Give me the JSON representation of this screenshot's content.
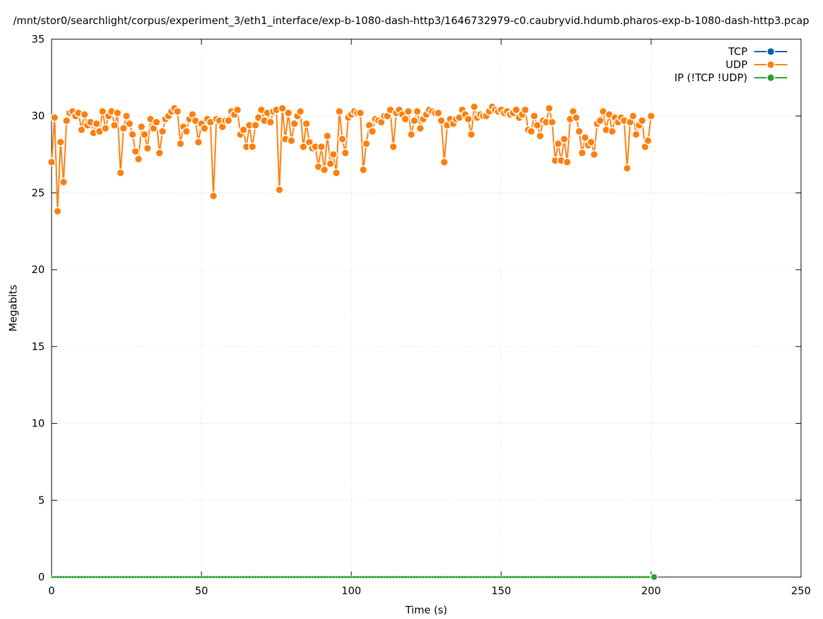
{
  "chart_data": {
    "type": "line",
    "title": "/mnt/stor0/searchlight/corpus/experiment_3/eth1_interface/exp-b-1080-dash-http3/1646732979-c0.caubryvid.hdumb.pharos-exp-b-1080-dash-http3.pcap",
    "xlabel": "Time (s)",
    "ylabel": "Megabits",
    "xlim": [
      0,
      250
    ],
    "ylim": [
      0,
      35
    ],
    "xticks": [
      0,
      50,
      100,
      150,
      200,
      250
    ],
    "yticks": [
      0,
      5,
      10,
      15,
      20,
      25,
      30,
      35
    ],
    "grid": true,
    "legend_position": "top-right",
    "series": [
      {
        "name": "TCP",
        "color": "#0060ad",
        "x": [],
        "y": []
      },
      {
        "name": "UDP",
        "color": "#ff7f0e",
        "x": [
          0,
          1,
          2,
          3,
          4,
          5,
          6,
          7,
          8,
          9,
          10,
          11,
          12,
          13,
          14,
          15,
          16,
          17,
          18,
          19,
          20,
          21,
          22,
          23,
          24,
          25,
          26,
          27,
          28,
          29,
          30,
          31,
          32,
          33,
          34,
          35,
          36,
          37,
          38,
          39,
          40,
          41,
          42,
          43,
          44,
          45,
          46,
          47,
          48,
          49,
          50,
          51,
          52,
          53,
          54,
          55,
          56,
          57,
          58,
          59,
          60,
          61,
          62,
          63,
          64,
          65,
          66,
          67,
          68,
          69,
          70,
          71,
          72,
          73,
          74,
          75,
          76,
          77,
          78,
          79,
          80,
          81,
          82,
          83,
          84,
          85,
          86,
          87,
          88,
          89,
          90,
          91,
          92,
          93,
          94,
          95,
          96,
          97,
          98,
          99,
          100,
          101,
          102,
          103,
          104,
          105,
          106,
          107,
          108,
          109,
          110,
          111,
          112,
          113,
          114,
          115,
          116,
          117,
          118,
          119,
          120,
          121,
          122,
          123,
          124,
          125,
          126,
          127,
          128,
          129,
          130,
          131,
          132,
          133,
          134,
          135,
          136,
          137,
          138,
          139,
          140,
          141,
          142,
          143,
          144,
          145,
          146,
          147,
          148,
          149,
          150,
          151,
          152,
          153,
          154,
          155,
          156,
          157,
          158,
          159,
          160,
          161,
          162,
          163,
          164,
          165,
          166,
          167,
          168,
          169,
          170,
          171,
          172,
          173,
          174,
          175,
          176,
          177,
          178,
          179,
          180,
          181,
          182,
          183,
          184,
          185,
          186,
          187,
          188,
          189,
          190,
          191,
          192,
          193,
          194,
          195,
          196,
          197,
          198,
          199,
          200
        ],
        "y": [
          27.0,
          29.9,
          23.8,
          28.3,
          25.7,
          29.7,
          30.2,
          30.3,
          30.0,
          30.2,
          29.1,
          30.1,
          29.4,
          29.6,
          28.9,
          29.5,
          29.0,
          30.3,
          29.2,
          30.0,
          30.3,
          29.4,
          30.2,
          26.3,
          29.2,
          30.0,
          29.5,
          28.8,
          27.7,
          27.2,
          29.3,
          28.8,
          27.9,
          29.8,
          29.2,
          29.6,
          27.6,
          29.0,
          29.8,
          30.0,
          30.3,
          30.5,
          30.3,
          28.2,
          29.3,
          29.0,
          29.8,
          30.1,
          29.7,
          28.3,
          29.5,
          29.2,
          29.8,
          29.6,
          24.8,
          29.8,
          29.7,
          29.3,
          29.7,
          29.7,
          30.3,
          30.1,
          30.4,
          28.8,
          29.1,
          28.0,
          29.4,
          28.0,
          29.4,
          29.9,
          30.4,
          29.7,
          30.2,
          29.6,
          30.3,
          30.4,
          25.2,
          30.5,
          28.5,
          30.2,
          28.4,
          29.5,
          30.0,
          30.3,
          28.0,
          29.5,
          28.3,
          27.9,
          28.0,
          26.7,
          28.0,
          26.5,
          28.7,
          26.9,
          27.5,
          26.3,
          30.3,
          28.5,
          27.6,
          29.9,
          30.1,
          30.3,
          30.2,
          30.2,
          26.5,
          28.2,
          29.4,
          29.0,
          29.8,
          29.7,
          29.6,
          30.0,
          30.0,
          30.4,
          28.0,
          30.2,
          30.4,
          30.1,
          29.8,
          30.3,
          28.8,
          29.7,
          30.3,
          29.2,
          29.8,
          30.1,
          30.4,
          30.3,
          30.2,
          30.2,
          29.7,
          27.0,
          29.4,
          29.8,
          29.5,
          29.8,
          29.9,
          30.4,
          30.1,
          29.8,
          28.8,
          30.6,
          29.9,
          30.1,
          30.0,
          30.0,
          30.3,
          30.6,
          30.4,
          30.3,
          30.4,
          30.2,
          30.3,
          30.1,
          30.2,
          30.4,
          29.9,
          30.1,
          30.4,
          29.1,
          29.0,
          30.0,
          29.4,
          28.7,
          29.7,
          29.6,
          30.5,
          29.6,
          27.1,
          28.2,
          27.1,
          28.5,
          27.0,
          29.8,
          30.3,
          29.9,
          29.0,
          27.6,
          28.6,
          28.1,
          28.3,
          27.5,
          29.5,
          29.7,
          30.3,
          29.1,
          30.1,
          29.0,
          29.9,
          29.6,
          29.9,
          29.7,
          26.6,
          29.6,
          30.0,
          28.8,
          29.4,
          29.7,
          28.0,
          28.4,
          30.0
        ]
      },
      {
        "name": "IP (!TCP  !UDP)",
        "color": "#2ca02c",
        "x": [
          0,
          1,
          2,
          3,
          4,
          5,
          6,
          7,
          8,
          9,
          10,
          11,
          12,
          13,
          14,
          15,
          16,
          17,
          18,
          19,
          20,
          21,
          22,
          23,
          24,
          25,
          26,
          27,
          28,
          29,
          30,
          31,
          32,
          33,
          34,
          35,
          36,
          37,
          38,
          39,
          40,
          41,
          42,
          43,
          44,
          45,
          46,
          47,
          48,
          49,
          50,
          51,
          52,
          53,
          54,
          55,
          56,
          57,
          58,
          59,
          60,
          61,
          62,
          63,
          64,
          65,
          66,
          67,
          68,
          69,
          70,
          71,
          72,
          73,
          74,
          75,
          76,
          77,
          78,
          79,
          80,
          81,
          82,
          83,
          84,
          85,
          86,
          87,
          88,
          89,
          90,
          91,
          92,
          93,
          94,
          95,
          96,
          97,
          98,
          99,
          100,
          101,
          102,
          103,
          104,
          105,
          106,
          107,
          108,
          109,
          110,
          111,
          112,
          113,
          114,
          115,
          116,
          117,
          118,
          119,
          120,
          121,
          122,
          123,
          124,
          125,
          126,
          127,
          128,
          129,
          130,
          131,
          132,
          133,
          134,
          135,
          136,
          137,
          138,
          139,
          140,
          141,
          142,
          143,
          144,
          145,
          146,
          147,
          148,
          149,
          150,
          151,
          152,
          153,
          154,
          155,
          156,
          157,
          158,
          159,
          160,
          161,
          162,
          163,
          164,
          165,
          166,
          167,
          168,
          169,
          170,
          171,
          172,
          173,
          174,
          175,
          176,
          177,
          178,
          179,
          180,
          181,
          182,
          183,
          184,
          185,
          186,
          187,
          188,
          189,
          190,
          191,
          192,
          193,
          194,
          195,
          196,
          197,
          198,
          199,
          200,
          201
        ],
        "y": [
          0,
          0,
          0,
          0,
          0,
          0,
          0,
          0,
          0,
          0,
          0,
          0,
          0,
          0,
          0,
          0,
          0,
          0,
          0,
          0,
          0,
          0,
          0,
          0,
          0,
          0,
          0,
          0,
          0,
          0,
          0,
          0,
          0,
          0,
          0,
          0,
          0,
          0,
          0,
          0,
          0,
          0,
          0,
          0,
          0,
          0,
          0,
          0,
          0,
          0,
          0,
          0,
          0,
          0,
          0,
          0,
          0,
          0,
          0,
          0,
          0,
          0,
          0,
          0,
          0,
          0,
          0,
          0,
          0,
          0,
          0,
          0,
          0,
          0,
          0,
          0,
          0,
          0,
          0,
          0,
          0,
          0,
          0,
          0,
          0,
          0,
          0,
          0,
          0,
          0,
          0,
          0,
          0,
          0,
          0,
          0,
          0,
          0,
          0,
          0,
          0,
          0,
          0,
          0,
          0,
          0,
          0,
          0,
          0,
          0,
          0,
          0,
          0,
          0,
          0,
          0,
          0,
          0,
          0,
          0,
          0,
          0,
          0,
          0,
          0,
          0,
          0,
          0,
          0,
          0,
          0,
          0,
          0,
          0,
          0,
          0,
          0,
          0,
          0,
          0,
          0,
          0,
          0,
          0,
          0,
          0,
          0,
          0,
          0,
          0,
          0,
          0,
          0,
          0,
          0,
          0,
          0,
          0,
          0,
          0,
          0,
          0,
          0,
          0,
          0,
          0,
          0,
          0,
          0,
          0,
          0,
          0,
          0,
          0,
          0,
          0,
          0,
          0,
          0,
          0,
          0,
          0,
          0,
          0,
          0,
          0,
          0,
          0,
          0,
          0,
          0,
          0,
          0,
          0,
          0,
          0,
          0,
          0,
          0,
          0,
          0,
          0
        ]
      }
    ]
  }
}
